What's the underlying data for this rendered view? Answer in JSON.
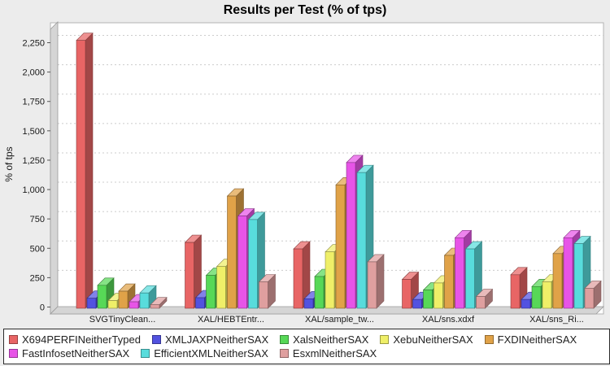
{
  "title": "Results per Test (% of tps)",
  "y_axis": {
    "label": "% of tps",
    "ticks": [
      {
        "label": "0",
        "value": 0
      },
      {
        "label": "250",
        "value": 250
      },
      {
        "label": "500",
        "value": 500
      },
      {
        "label": "750",
        "value": 750
      },
      {
        "label": "1,000",
        "value": 1000
      },
      {
        "label": "1,250",
        "value": 1250
      },
      {
        "label": "1,500",
        "value": 1500
      },
      {
        "label": "1,750",
        "value": 1750
      },
      {
        "label": "2,000",
        "value": 2000
      },
      {
        "label": "2,250",
        "value": 2250
      }
    ]
  },
  "chart_data": {
    "type": "bar",
    "style": "3d-bars",
    "title": "Results per Test (% of tps)",
    "xlabel": "",
    "ylabel": "% of tps",
    "ylim": [
      0,
      2250
    ],
    "y_tick_step": 250,
    "grid": "horizontal-dashed",
    "legend_position": "bottom",
    "categories": [
      "SVGTinyClean...",
      "XAL/HEBTEntr...",
      "XAL/sample_tw...",
      "XAL/sns.xdxf",
      "XAL/sns_Ri..."
    ],
    "series": [
      {
        "name": "X694PERFINeitherTyped",
        "color": "#e86565",
        "values": [
          2280,
          560,
          505,
          245,
          285
        ]
      },
      {
        "name": "XMLJAXPNeitherSAX",
        "color": "#5252e0",
        "values": [
          85,
          90,
          80,
          75,
          75
        ]
      },
      {
        "name": "XalsNeitherSAX",
        "color": "#57d857",
        "values": [
          195,
          280,
          270,
          155,
          185
        ]
      },
      {
        "name": "XebuNeitherSAX",
        "color": "#efef68",
        "values": [
          65,
          355,
          480,
          215,
          225
        ]
      },
      {
        "name": "FXDINeitherSAX",
        "color": "#e0a248",
        "values": [
          145,
          955,
          1050,
          450,
          465
        ]
      },
      {
        "name": "FastInfosetNeitherSAX",
        "color": "#e754e7",
        "values": [
          55,
          785,
          1240,
          600,
          600
        ]
      },
      {
        "name": "EfficientXMLNeitherSAX",
        "color": "#58dcdc",
        "values": [
          130,
          755,
          1155,
          505,
          550
        ]
      },
      {
        "name": "EsxmlNeitherSAX",
        "color": "#df9f9f",
        "values": [
          30,
          225,
          395,
          100,
          170
        ]
      }
    ]
  },
  "colors": {
    "page_background": "#ececec",
    "plot_background": "#ffffff",
    "wall": "#d5d5d5",
    "wall_edge": "#9a9a9a",
    "grid": "#cccccc",
    "plot_border": "#b3b3b3",
    "axis_text": "#1a1a1a",
    "legend_border": "#2b2b2b"
  }
}
